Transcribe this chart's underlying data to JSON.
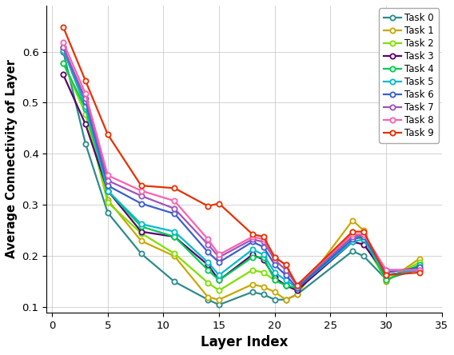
{
  "tasks": [
    "Task 0",
    "Task 1",
    "Task 2",
    "Task 3",
    "Task 4",
    "Task 5",
    "Task 6",
    "Task 7",
    "Task 8",
    "Task 9"
  ],
  "colors": [
    "#2E8B8B",
    "#C8A800",
    "#80E000",
    "#5B0070",
    "#00CC55",
    "#00BBCC",
    "#3A5FCD",
    "#9B55C0",
    "#FF60B0",
    "#E83000"
  ],
  "x": [
    1,
    3,
    5,
    8,
    11,
    14,
    15,
    18,
    19,
    20,
    21,
    22,
    27,
    28,
    30,
    33
  ],
  "series": {
    "Task 0": [
      0.6,
      0.42,
      0.285,
      0.205,
      0.15,
      0.115,
      0.105,
      0.13,
      0.125,
      0.115,
      0.115,
      0.125,
      0.21,
      0.2,
      0.155,
      0.175
    ],
    "Task 1": [
      0.605,
      0.49,
      0.31,
      0.23,
      0.2,
      0.12,
      0.115,
      0.145,
      0.14,
      0.13,
      0.115,
      0.125,
      0.27,
      0.25,
      0.15,
      0.195
    ],
    "Task 2": [
      0.578,
      0.478,
      0.305,
      0.245,
      0.205,
      0.148,
      0.133,
      0.173,
      0.168,
      0.153,
      0.143,
      0.133,
      0.248,
      0.228,
      0.153,
      0.188
    ],
    "Task 3": [
      0.555,
      0.458,
      0.328,
      0.248,
      0.238,
      0.183,
      0.153,
      0.203,
      0.193,
      0.158,
      0.143,
      0.133,
      0.228,
      0.223,
      0.163,
      0.173
    ],
    "Task 4": [
      0.578,
      0.488,
      0.328,
      0.258,
      0.238,
      0.173,
      0.153,
      0.198,
      0.198,
      0.153,
      0.143,
      0.138,
      0.238,
      0.238,
      0.153,
      0.183
    ],
    "Task 5": [
      0.603,
      0.493,
      0.328,
      0.263,
      0.248,
      0.188,
      0.163,
      0.213,
      0.203,
      0.168,
      0.153,
      0.138,
      0.228,
      0.233,
      0.163,
      0.173
    ],
    "Task 6": [
      0.608,
      0.503,
      0.338,
      0.303,
      0.283,
      0.208,
      0.188,
      0.228,
      0.218,
      0.183,
      0.163,
      0.138,
      0.233,
      0.238,
      0.168,
      0.178
    ],
    "Task 7": [
      0.608,
      0.508,
      0.348,
      0.318,
      0.293,
      0.223,
      0.198,
      0.233,
      0.228,
      0.193,
      0.173,
      0.143,
      0.238,
      0.243,
      0.173,
      0.173
    ],
    "Task 8": [
      0.618,
      0.518,
      0.358,
      0.328,
      0.308,
      0.233,
      0.203,
      0.238,
      0.233,
      0.198,
      0.183,
      0.143,
      0.243,
      0.243,
      0.173,
      0.173
    ],
    "Task 9": [
      0.648,
      0.543,
      0.438,
      0.338,
      0.333,
      0.298,
      0.303,
      0.243,
      0.238,
      0.198,
      0.183,
      0.143,
      0.248,
      0.248,
      0.163,
      0.168
    ]
  },
  "xlabel": "Layer Index",
  "ylabel": "Average Connectivity of Layer",
  "xlim": [
    -0.5,
    35
  ],
  "ylim": [
    0.09,
    0.69
  ],
  "xticks": [
    0,
    5,
    10,
    15,
    20,
    25,
    30,
    35
  ],
  "yticks": [
    0.1,
    0.2,
    0.3,
    0.4,
    0.5,
    0.6
  ],
  "grid": true,
  "marker": "o",
  "markersize": 4.5,
  "linewidth": 1.6
}
